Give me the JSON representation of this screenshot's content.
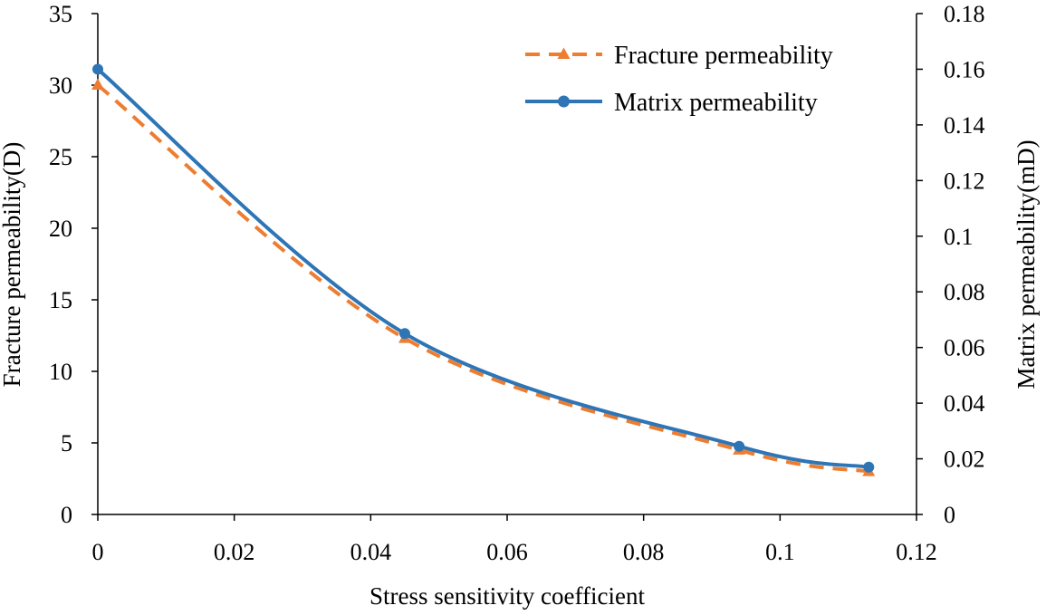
{
  "chart_data": {
    "type": "line",
    "title": "",
    "xlabel": "Stress sensitivity coefficient",
    "ylabel": "Fracture permeability(D)",
    "y2label": "Matrix permeability(mD)",
    "xlim": [
      0,
      0.12
    ],
    "ylim": [
      0,
      35
    ],
    "y2lim": [
      0,
      0.18
    ],
    "xticks": [
      "0",
      "0.02",
      "0.04",
      "0.06",
      "0.08",
      "0.1",
      "0.12"
    ],
    "yticks": [
      "0",
      "5",
      "10",
      "15",
      "20",
      "25",
      "30",
      "35"
    ],
    "y2ticks": [
      "0",
      "0.02",
      "0.04",
      "0.06",
      "0.08",
      "0.1",
      "0.12",
      "0.14",
      "0.16",
      "0.18"
    ],
    "grid": false,
    "legend_position": "top-right",
    "series": [
      {
        "name": "Fracture permeability",
        "axis": "left",
        "color": "#ED7D31",
        "line_style": "dashed",
        "marker": "triangle",
        "x": [
          0,
          0.045,
          0.094,
          0.113
        ],
        "y": [
          30.0,
          12.3,
          4.5,
          3.0
        ]
      },
      {
        "name": "Matrix permeability",
        "axis": "right",
        "color": "#2E75B6",
        "line_style": "solid",
        "marker": "circle",
        "x": [
          0,
          0.045,
          0.094,
          0.113
        ],
        "y": [
          0.16,
          0.065,
          0.0245,
          0.017
        ]
      }
    ]
  }
}
